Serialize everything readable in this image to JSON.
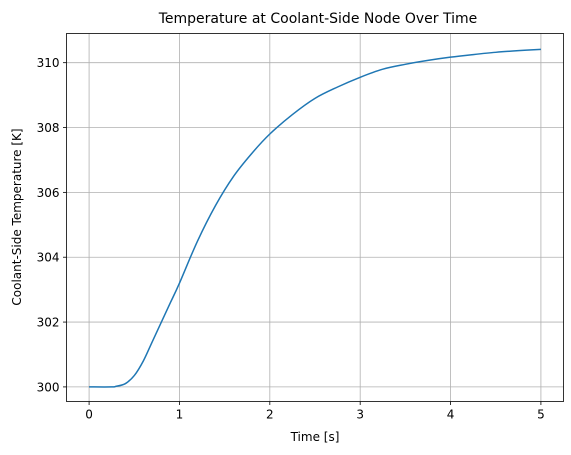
{
  "chart_data": {
    "type": "line",
    "title": "Temperature at Coolant-Side Node Over Time",
    "xlabel": "Time [s]",
    "ylabel": "Coolant-Side Temperature [K]",
    "xlim": [
      -0.25,
      5.25
    ],
    "ylim": [
      299.55,
      310.9
    ],
    "grid": true,
    "x_ticks": [
      0,
      1,
      2,
      3,
      4,
      5
    ],
    "x_tick_labels": [
      "0",
      "1",
      "2",
      "3",
      "4",
      "5"
    ],
    "y_ticks": [
      300,
      302,
      304,
      306,
      308,
      310
    ],
    "y_tick_labels": [
      "300",
      "302",
      "304",
      "306",
      "308",
      "310"
    ],
    "series": [
      {
        "color": "#1f77b4",
        "x": [
          0,
          0.25,
          0.3,
          0.4,
          0.5,
          0.6,
          0.7,
          0.8,
          0.9,
          1.0,
          1.2,
          1.4,
          1.6,
          1.8,
          2.0,
          2.25,
          2.5,
          2.75,
          3.0,
          3.25,
          3.5,
          3.75,
          4.0,
          4.25,
          4.5,
          4.75,
          5.0
        ],
        "y": [
          300.0,
          300.0,
          300.02,
          300.1,
          300.35,
          300.8,
          301.4,
          302.0,
          302.6,
          303.2,
          304.5,
          305.6,
          306.5,
          307.2,
          307.8,
          308.4,
          308.9,
          309.25,
          309.55,
          309.8,
          309.95,
          310.07,
          310.17,
          310.25,
          310.32,
          310.37,
          310.41
        ]
      }
    ]
  }
}
